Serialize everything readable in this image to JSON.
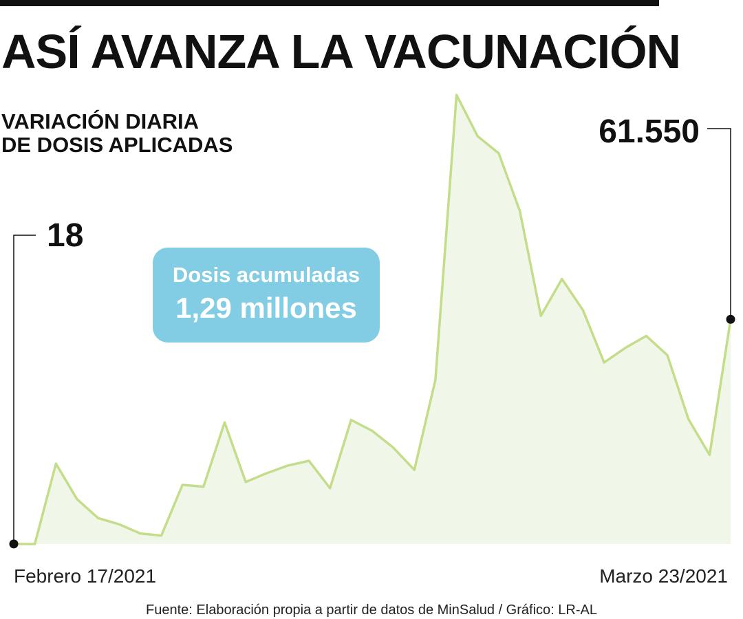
{
  "header": {
    "title": "ASÍ AVANZA LA VACUNACIÓN",
    "subtitle_line1": "VARIACIÓN DIARIA",
    "subtitle_line2": "DE DOSIS APLICADAS"
  },
  "badge": {
    "label": "Dosis acumuladas",
    "value": "1,29 millones"
  },
  "annotations": {
    "first_value_label": "18",
    "last_value_label": "61.550"
  },
  "x_start_label": "Febrero 17/2021",
  "x_end_label": "Marzo 23/2021",
  "source": "Fuente: Elaboración propia a partir de datos de MinSalud / Gráfico: LR-AL",
  "colors": {
    "line": "#c3dd8a",
    "fill": "#f1f7e8",
    "badge": "#83cde4",
    "text": "#111111"
  },
  "chart_data": {
    "type": "area",
    "title": "ASÍ AVANZA LA VACUNACIÓN",
    "subtitle": "VARIACIÓN DIARIA DE DOSIS APLICADAS",
    "xlabel": "",
    "ylabel": "",
    "grid": false,
    "legend": "none",
    "x_start": "Febrero 17/2021",
    "x_end": "Marzo 23/2021",
    "ylim": [
      0,
      123000
    ],
    "values": [
      18,
      0,
      22000,
      12300,
      7100,
      5400,
      2900,
      2300,
      16200,
      15700,
      33300,
      17000,
      19400,
      21500,
      22800,
      15300,
      34000,
      31000,
      26400,
      20300,
      45000,
      123000,
      111700,
      107000,
      91300,
      62500,
      72600,
      64000,
      49700,
      53700,
      57000,
      51700,
      34200,
      24400,
      61550
    ]
  }
}
